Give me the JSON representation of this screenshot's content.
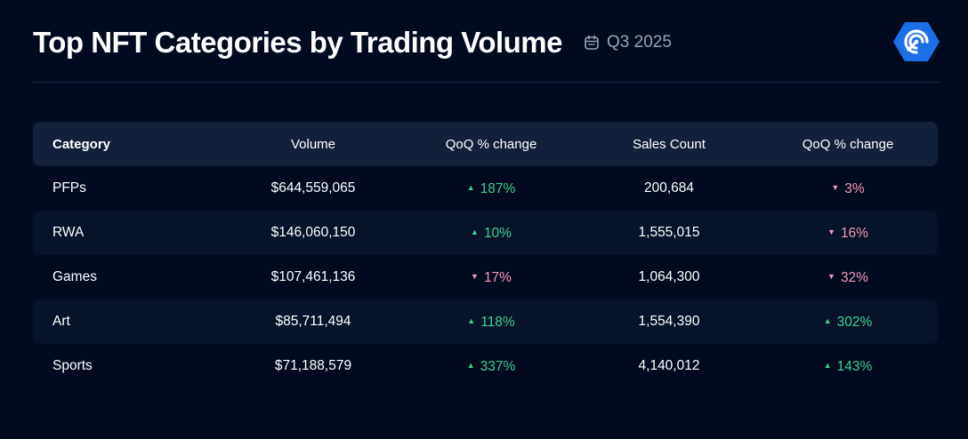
{
  "header": {
    "title": "Top NFT Categories by Trading Volume",
    "period": "Q3 2025",
    "calendar_icon": "calendar-icon",
    "logo_icon": "brand-logo-icon"
  },
  "colors": {
    "background": "#020a1f",
    "header_row": "#132039",
    "up": "#3fd08c",
    "down": "#f29ab4",
    "logo": "#1d6fe8"
  },
  "table": {
    "columns": [
      "Category",
      "Volume",
      "QoQ % change",
      "Sales Count",
      "QoQ % change"
    ],
    "rows": [
      {
        "category": "PFPs",
        "volume": "$644,559,065",
        "volume_change": "187%",
        "volume_dir": "up",
        "sales": "200,684",
        "sales_change": "3%",
        "sales_dir": "down"
      },
      {
        "category": "RWA",
        "volume": "$146,060,150",
        "volume_change": "10%",
        "volume_dir": "up",
        "sales": "1,555,015",
        "sales_change": "16%",
        "sales_dir": "down"
      },
      {
        "category": "Games",
        "volume": "$107,461,136",
        "volume_change": "17%",
        "volume_dir": "down",
        "sales": "1,064,300",
        "sales_change": "32%",
        "sales_dir": "down"
      },
      {
        "category": "Art",
        "volume": "$85,711,494",
        "volume_change": "118%",
        "volume_dir": "up",
        "sales": "1,554,390",
        "sales_change": "302%",
        "sales_dir": "up"
      },
      {
        "category": "Sports",
        "volume": "$71,188,579",
        "volume_change": "337%",
        "volume_dir": "up",
        "sales": "4,140,012",
        "sales_change": "143%",
        "sales_dir": "up"
      }
    ]
  }
}
